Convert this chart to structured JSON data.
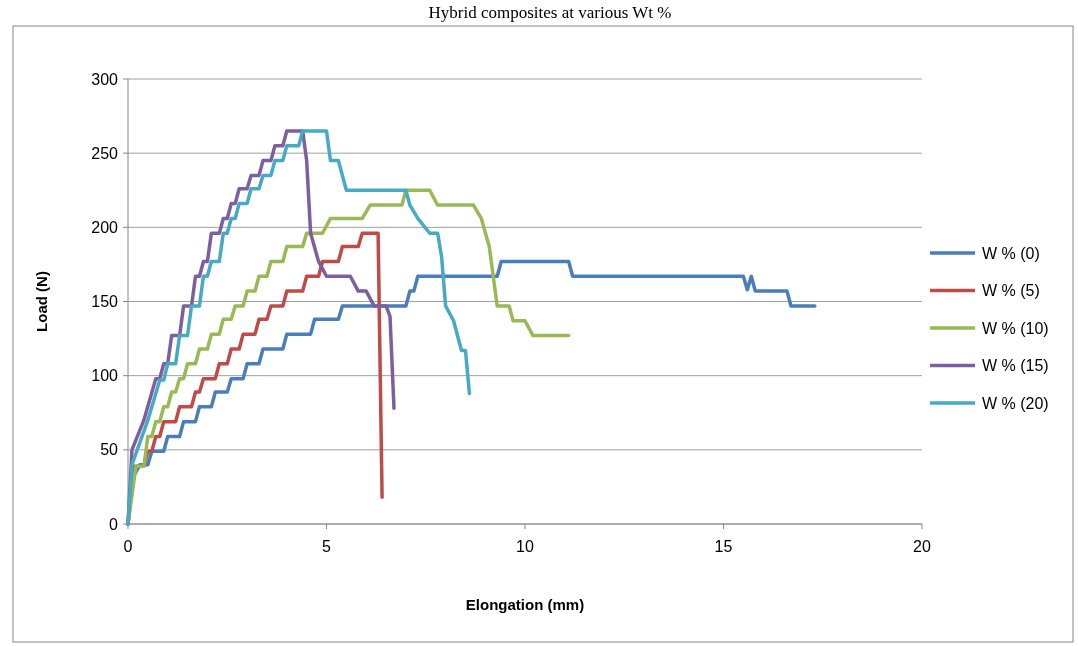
{
  "chart_data": {
    "type": "line",
    "title": "Hybrid composites at various Wt %",
    "xlabel": "Elongation (mm)",
    "ylabel": "Load (N)",
    "xlim": [
      0,
      20
    ],
    "xticks": [
      0,
      5,
      10,
      15,
      20
    ],
    "ylim": [
      0,
      300
    ],
    "yticks": [
      0,
      50,
      100,
      150,
      200,
      250,
      300
    ],
    "grid": "y",
    "legend": "right",
    "marker": "none",
    "line_style": "solid",
    "series": [
      {
        "name": "W % (0)",
        "color": "#4a7ebb",
        "x": [
          0,
          0.1,
          0.3,
          0.5,
          0.6,
          0.9,
          1.0,
          1.3,
          1.4,
          1.7,
          1.8,
          2.1,
          2.2,
          2.5,
          2.6,
          2.9,
          3.0,
          3.3,
          3.4,
          3.9,
          4.0,
          4.6,
          4.7,
          5.3,
          5.4,
          7.0,
          7.1,
          7.2,
          7.3,
          9.3,
          9.4,
          11.1,
          11.2,
          15.5,
          15.6,
          15.7,
          15.8,
          16.6,
          16.7,
          17.3
        ],
        "values": [
          0,
          30,
          40,
          40,
          49,
          49,
          59,
          59,
          69,
          69,
          79,
          79,
          89,
          89,
          98,
          98,
          108,
          108,
          118,
          118,
          128,
          128,
          138,
          138,
          147,
          147,
          157,
          157,
          167,
          167,
          177,
          177,
          167,
          167,
          158,
          167,
          157,
          157,
          147,
          147
        ]
      },
      {
        "name": "W % (5)",
        "color": "#be4b48",
        "x": [
          0,
          0.15,
          0.4,
          0.5,
          0.6,
          0.7,
          0.8,
          0.9,
          1.2,
          1.3,
          1.6,
          1.7,
          1.8,
          1.9,
          2.2,
          2.3,
          2.5,
          2.6,
          2.8,
          2.9,
          3.2,
          3.3,
          3.5,
          3.6,
          3.9,
          4.0,
          4.4,
          4.5,
          4.8,
          4.9,
          5.3,
          5.4,
          5.8,
          5.9,
          6.3,
          6.4
        ],
        "values": [
          0,
          39,
          39,
          49,
          49,
          59,
          59,
          69,
          69,
          79,
          79,
          89,
          89,
          98,
          98,
          108,
          108,
          118,
          118,
          128,
          128,
          138,
          138,
          147,
          147,
          157,
          157,
          167,
          167,
          177,
          177,
          187,
          187,
          196,
          196,
          18
        ]
      },
      {
        "name": "W % (10)",
        "color": "#98b954",
        "x": [
          0,
          0.2,
          0.4,
          0.5,
          0.6,
          0.7,
          0.8,
          0.9,
          1.0,
          1.1,
          1.2,
          1.3,
          1.4,
          1.5,
          1.7,
          1.8,
          2.0,
          2.1,
          2.3,
          2.4,
          2.6,
          2.7,
          2.9,
          3.0,
          3.2,
          3.3,
          3.5,
          3.6,
          3.9,
          4.0,
          4.4,
          4.5,
          4.9,
          5.1,
          5.9,
          6.1,
          6.9,
          7.0,
          7.6,
          7.8,
          8.7,
          8.9,
          9.1,
          9.3,
          9.6,
          9.7,
          10.0,
          10.2,
          11.1
        ],
        "values": [
          0,
          39,
          39,
          59,
          59,
          69,
          69,
          79,
          79,
          89,
          89,
          98,
          98,
          108,
          108,
          118,
          118,
          128,
          128,
          138,
          138,
          147,
          147,
          157,
          157,
          167,
          167,
          177,
          177,
          187,
          187,
          196,
          196,
          206,
          206,
          215,
          215,
          225,
          225,
          215,
          215,
          206,
          187,
          147,
          147,
          137,
          137,
          127,
          127
        ]
      },
      {
        "name": "W % (15)",
        "color": "#7d5fa0",
        "x": [
          0,
          0.1,
          0.4,
          0.7,
          0.8,
          0.9,
          1.0,
          1.1,
          1.3,
          1.4,
          1.6,
          1.7,
          1.8,
          1.9,
          2.0,
          2.1,
          2.3,
          2.4,
          2.5,
          2.6,
          2.7,
          2.8,
          3.0,
          3.1,
          3.3,
          3.4,
          3.6,
          3.7,
          3.9,
          4.0,
          4.4,
          4.5,
          4.6,
          4.8,
          5.0,
          5.6,
          5.8,
          6.0,
          6.2,
          6.5,
          6.6,
          6.7
        ],
        "values": [
          0,
          50,
          70,
          98,
          98,
          108,
          108,
          127,
          127,
          147,
          147,
          167,
          167,
          177,
          177,
          196,
          196,
          206,
          206,
          216,
          216,
          226,
          226,
          235,
          235,
          245,
          245,
          255,
          255,
          265,
          265,
          245,
          196,
          177,
          167,
          167,
          157,
          157,
          147,
          147,
          140,
          78
        ]
      },
      {
        "name": "W % (20)",
        "color": "#46aac5",
        "x": [
          0,
          0.1,
          0.5,
          0.8,
          0.9,
          1.0,
          1.2,
          1.3,
          1.5,
          1.6,
          1.8,
          1.9,
          2.0,
          2.1,
          2.3,
          2.4,
          2.5,
          2.6,
          2.7,
          2.8,
          3.0,
          3.1,
          3.3,
          3.4,
          3.6,
          3.7,
          3.9,
          4.0,
          4.3,
          4.4,
          5.0,
          5.1,
          5.3,
          5.5,
          7.0,
          7.1,
          7.3,
          7.6,
          7.8,
          7.9,
          8.0,
          8.2,
          8.4,
          8.5,
          8.6
        ],
        "values": [
          0,
          40,
          70,
          97,
          97,
          108,
          108,
          127,
          127,
          147,
          147,
          167,
          167,
          177,
          177,
          196,
          196,
          206,
          206,
          216,
          216,
          226,
          226,
          235,
          235,
          245,
          245,
          255,
          255,
          265,
          265,
          245,
          245,
          225,
          225,
          215,
          206,
          196,
          196,
          180,
          147,
          137,
          117,
          117,
          88
        ]
      }
    ]
  }
}
